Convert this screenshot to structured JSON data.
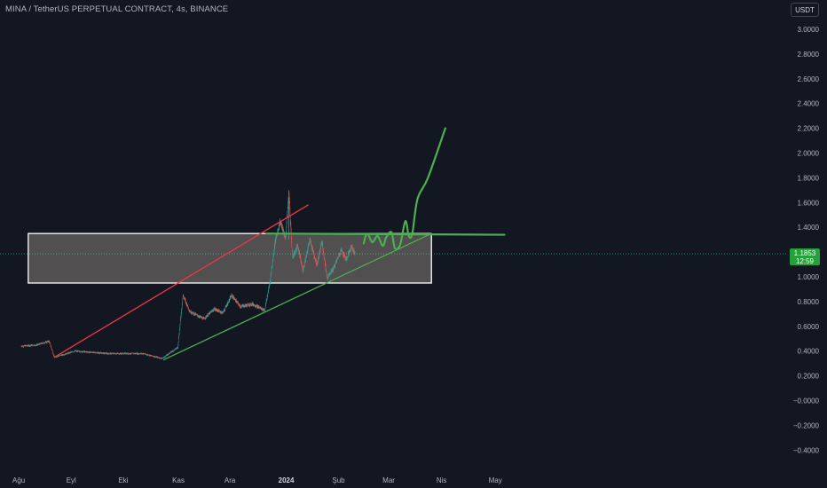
{
  "header": {
    "title": "MINA / TetherUS PERPETUAL CONTRACT, 4s, BINANCE",
    "currency_label": "USDT"
  },
  "price_badge": {
    "price": "1.1853",
    "countdown": "12:59"
  },
  "colors": {
    "background": "#131722",
    "axis_text": "#b2b5be",
    "candle_up": "#26a69a",
    "candle_down": "#ef5350",
    "red_trendline": "#f23645",
    "green_drawing": "#4caf50",
    "badge": "#26a03a"
  },
  "chart_data": {
    "type": "candlestick",
    "title": "MINA / TetherUS PERPETUAL CONTRACT, 4s, BINANCE",
    "y_ticks": [
      "3.0000",
      "2.8000",
      "2.6000",
      "2.4000",
      "2.2000",
      "2.0000",
      "1.8000",
      "1.6000",
      "1.4000",
      "1.2000",
      "1.0000",
      "0.8000",
      "0.6000",
      "0.4000",
      "0.2000",
      "−0.0000",
      "−0.2000",
      "−0.4000"
    ],
    "ylim": [
      -0.45,
      3.05
    ],
    "x_ticks": [
      "Ağu",
      "Eyl",
      "Eki",
      "Kas",
      "Ara",
      "2024",
      "Şub",
      "Mar",
      "Nis",
      "May"
    ],
    "price_path": [
      {
        "date": "2023-08-01",
        "price": 0.44
      },
      {
        "date": "2023-08-10",
        "price": 0.45
      },
      {
        "date": "2023-08-17",
        "price": 0.48
      },
      {
        "date": "2023-08-20",
        "price": 0.35
      },
      {
        "date": "2023-09-01",
        "price": 0.4
      },
      {
        "date": "2023-09-20",
        "price": 0.38
      },
      {
        "date": "2023-10-10",
        "price": 0.38
      },
      {
        "date": "2023-10-21",
        "price": 0.34
      },
      {
        "date": "2023-10-30",
        "price": 0.43
      },
      {
        "date": "2023-11-02",
        "price": 0.85
      },
      {
        "date": "2023-11-06",
        "price": 0.72
      },
      {
        "date": "2023-11-14",
        "price": 0.66
      },
      {
        "date": "2023-11-20",
        "price": 0.74
      },
      {
        "date": "2023-11-25",
        "price": 0.71
      },
      {
        "date": "2023-11-30",
        "price": 0.85
      },
      {
        "date": "2023-12-05",
        "price": 0.76
      },
      {
        "date": "2023-12-12",
        "price": 0.78
      },
      {
        "date": "2023-12-19",
        "price": 0.73
      },
      {
        "date": "2023-12-22",
        "price": 0.95
      },
      {
        "date": "2023-12-25",
        "price": 1.28
      },
      {
        "date": "2023-12-28",
        "price": 1.45
      },
      {
        "date": "2023-12-31",
        "price": 1.31
      },
      {
        "date": "2024-01-02",
        "price": 1.68
      },
      {
        "date": "2024-01-04",
        "price": 1.15
      },
      {
        "date": "2024-01-07",
        "price": 1.25
      },
      {
        "date": "2024-01-10",
        "price": 1.05
      },
      {
        "date": "2024-01-14",
        "price": 1.3
      },
      {
        "date": "2024-01-18",
        "price": 1.1
      },
      {
        "date": "2024-01-21",
        "price": 1.28
      },
      {
        "date": "2024-01-24",
        "price": 0.99
      },
      {
        "date": "2024-01-28",
        "price": 1.08
      },
      {
        "date": "2024-02-01",
        "price": 1.22
      },
      {
        "date": "2024-02-04",
        "price": 1.14
      },
      {
        "date": "2024-02-07",
        "price": 1.25
      },
      {
        "date": "2024-02-09",
        "price": 1.1853
      }
    ],
    "last_price": 1.1853,
    "drawings": {
      "zone": {
        "date_from": "2023-08-05",
        "date_to": "2024-03-24",
        "price_from": 0.95,
        "price_to": 1.35
      },
      "red_trendline": {
        "from": {
          "date": "2023-08-20",
          "price": 0.35
        },
        "to": {
          "date": "2024-01-13",
          "price": 1.58
        }
      },
      "green_support": {
        "from": {
          "date": "2023-10-22",
          "price": 0.33
        },
        "to": {
          "date": "2024-03-24",
          "price": 1.35
        }
      },
      "green_resistance": {
        "from": {
          "date": "2023-12-20",
          "price": 1.35
        },
        "to": {
          "date": "2024-05-05",
          "price": 1.34
        }
      },
      "projection": [
        {
          "date": "2024-02-14",
          "price": 1.27
        },
        {
          "date": "2024-02-16",
          "price": 1.35
        },
        {
          "date": "2024-02-19",
          "price": 1.28
        },
        {
          "date": "2024-02-22",
          "price": 1.33
        },
        {
          "date": "2024-02-25",
          "price": 1.25
        },
        {
          "date": "2024-02-27",
          "price": 1.32
        },
        {
          "date": "2024-03-01",
          "price": 1.36
        },
        {
          "date": "2024-03-03",
          "price": 1.23
        },
        {
          "date": "2024-03-06",
          "price": 1.26
        },
        {
          "date": "2024-03-09",
          "price": 1.45
        },
        {
          "date": "2024-03-11",
          "price": 1.33
        },
        {
          "date": "2024-03-13",
          "price": 1.35
        },
        {
          "date": "2024-03-16",
          "price": 1.63
        },
        {
          "date": "2024-03-22",
          "price": 1.8
        },
        {
          "date": "2024-04-01",
          "price": 2.2
        }
      ]
    }
  }
}
